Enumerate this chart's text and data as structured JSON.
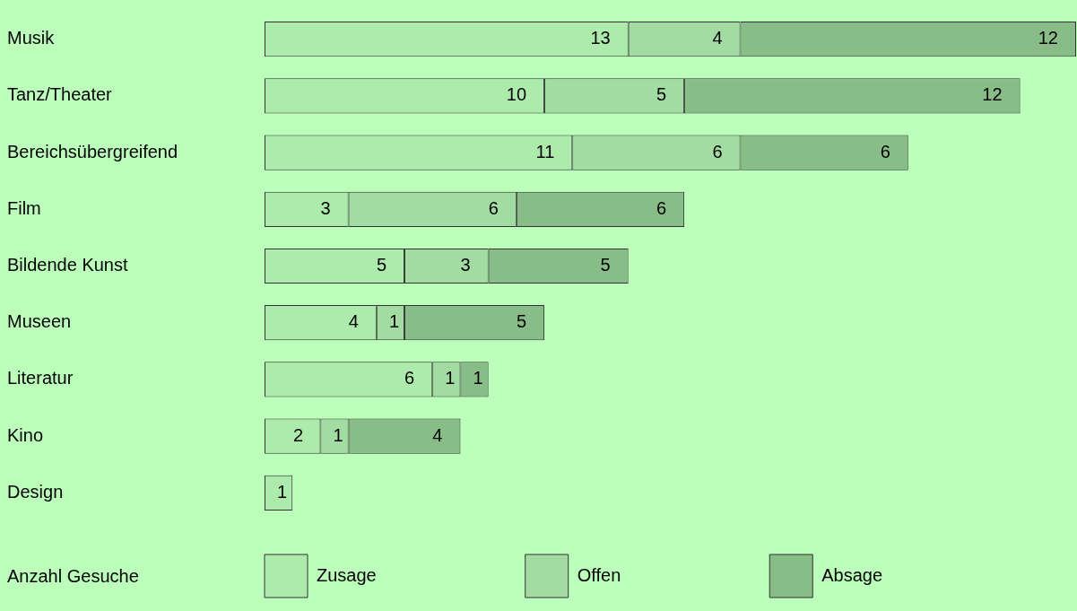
{
  "chart_data": {
    "type": "bar",
    "orientation": "horizontal",
    "stacked": true,
    "data_labels": true,
    "grid": false,
    "legend": "bottom",
    "legend_title": "Anzahl Gesuche",
    "categories": [
      "Musik",
      "Tanz/Theater",
      "Bereichsübergreifend",
      "Film",
      "Bildende Kunst",
      "Museen",
      "Literatur",
      "Kino",
      "Design"
    ],
    "series": [
      {
        "name": "Zusage",
        "color": "#acebac",
        "values": [
          13,
          10,
          11,
          3,
          5,
          4,
          6,
          2,
          1
        ]
      },
      {
        "name": "Offen",
        "color": "#a2dca2",
        "values": [
          4,
          5,
          6,
          6,
          3,
          1,
          1,
          1,
          null
        ]
      },
      {
        "name": "Absage",
        "color": "#88bd88",
        "values": [
          12,
          12,
          6,
          6,
          5,
          5,
          1,
          4,
          null
        ]
      }
    ]
  }
}
